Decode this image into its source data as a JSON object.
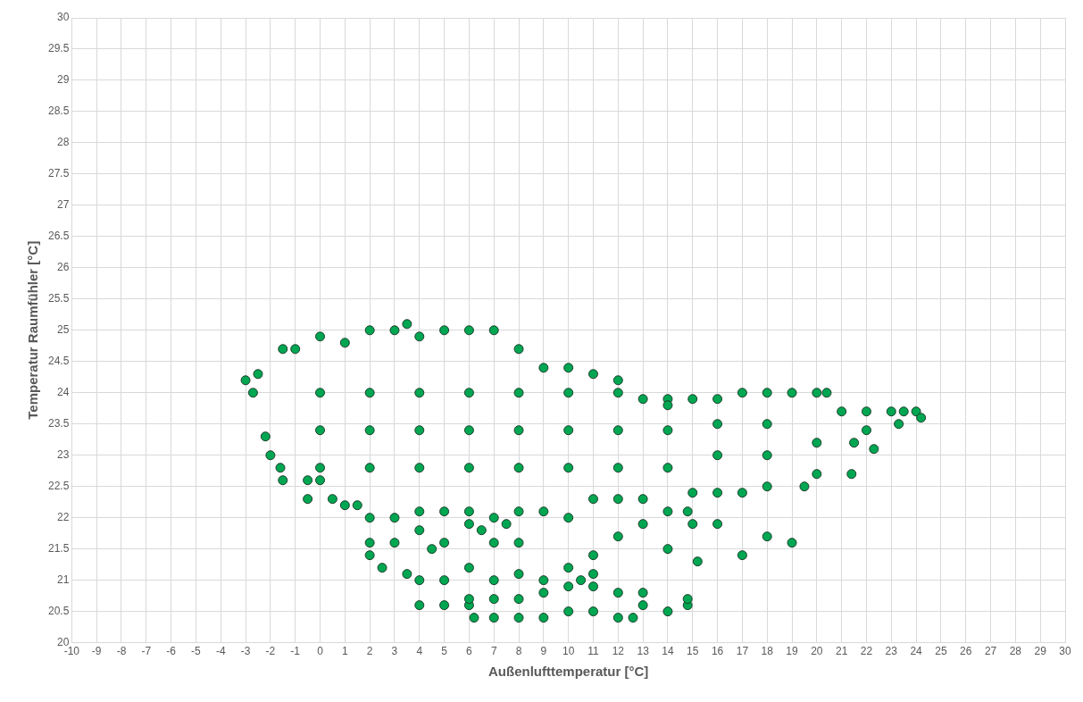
{
  "chart_data": {
    "type": "scatter",
    "xlabel": "Außenlufttemperatur [°C]",
    "ylabel": "Temperatur Raumfühler [°C]",
    "xlim": [
      -10,
      30
    ],
    "xticks": [
      -10,
      -9,
      -8,
      -7,
      -6,
      -5,
      -4,
      -3,
      -2,
      -1,
      0,
      1,
      2,
      3,
      4,
      5,
      6,
      7,
      8,
      9,
      10,
      11,
      12,
      13,
      14,
      15,
      16,
      17,
      18,
      19,
      20,
      21,
      22,
      23,
      24,
      25,
      26,
      27,
      28,
      29,
      30
    ],
    "ylim": [
      20,
      30
    ],
    "yticks": [
      20,
      20.5,
      21,
      21.5,
      22,
      22.5,
      23,
      23.5,
      24,
      24.5,
      25,
      25.5,
      26,
      26.5,
      27,
      27.5,
      28,
      28.5,
      29,
      29.5,
      30
    ],
    "grid": true,
    "legend": false,
    "marker": "circle",
    "series": [
      {
        "color": "#00a651",
        "x": [
          -3,
          -2.5,
          -1.5,
          -1,
          0,
          1,
          2,
          3,
          3.5,
          4,
          5,
          6,
          7,
          8,
          9,
          10,
          11,
          12,
          13,
          14,
          15,
          16,
          17,
          18,
          19,
          20,
          20.4,
          21,
          22,
          23,
          23.5,
          24,
          24.2,
          23.3,
          22.3,
          21.5,
          21.4,
          20,
          19.5,
          18,
          17,
          16,
          15,
          19,
          18,
          17,
          16,
          15,
          15.2,
          14,
          13,
          12,
          11,
          10,
          9,
          8,
          7,
          6,
          5,
          4,
          3.5,
          2.5,
          2,
          2,
          3,
          4,
          5,
          4.5,
          6,
          7,
          8,
          6.5,
          7.5,
          4,
          5,
          6,
          6.2,
          7,
          8,
          9,
          10,
          11,
          12,
          12.6,
          13,
          14,
          14.8,
          14.8,
          13,
          12,
          11,
          10,
          9,
          8,
          7,
          6,
          10.5,
          11,
          -2.7,
          -2.2,
          -2,
          -1.6,
          -1.5,
          -0.5,
          0,
          0.5,
          -0.5,
          1,
          1.5,
          2,
          3,
          4,
          5,
          6,
          7,
          8,
          9,
          10,
          11,
          12,
          13,
          14,
          14.8,
          0,
          0,
          0,
          2,
          2,
          2,
          4,
          4,
          4,
          6,
          6,
          6,
          8,
          8,
          8,
          10,
          10,
          10,
          12,
          12,
          12,
          14,
          14,
          14,
          16,
          16,
          18,
          18,
          20,
          22
        ],
        "values": [
          24.2,
          24.3,
          24.7,
          24.7,
          24.9,
          24.8,
          25.0,
          25.0,
          25.1,
          24.9,
          25.0,
          25.0,
          25.0,
          24.7,
          24.4,
          24.4,
          24.3,
          24.2,
          23.9,
          23.9,
          23.9,
          23.9,
          24.0,
          24.0,
          24.0,
          24.0,
          24.0,
          23.7,
          23.7,
          23.7,
          23.7,
          23.7,
          23.6,
          23.5,
          23.1,
          23.2,
          22.7,
          22.7,
          22.5,
          22.5,
          22.4,
          22.4,
          22.4,
          21.6,
          21.7,
          21.4,
          21.9,
          21.9,
          21.3,
          21.5,
          21.9,
          21.7,
          21.4,
          21.2,
          21.0,
          21.1,
          21.0,
          21.2,
          21.0,
          21.0,
          21.1,
          21.2,
          21.4,
          21.6,
          21.6,
          21.8,
          21.6,
          21.5,
          21.9,
          21.6,
          21.6,
          21.8,
          21.9,
          20.6,
          20.6,
          20.6,
          20.4,
          20.4,
          20.4,
          20.4,
          20.5,
          20.5,
          20.4,
          20.4,
          20.6,
          20.5,
          20.6,
          20.7,
          20.8,
          20.8,
          20.9,
          20.9,
          20.8,
          20.7,
          20.7,
          20.7,
          21.0,
          21.1,
          24.0,
          23.3,
          23.0,
          22.8,
          22.6,
          22.6,
          22.6,
          22.3,
          22.3,
          22.2,
          22.2,
          22.0,
          22.0,
          22.1,
          22.1,
          22.1,
          22.0,
          22.1,
          22.1,
          22.0,
          22.3,
          22.3,
          22.3,
          22.1,
          22.1,
          22.8,
          23.4,
          24.0,
          22.8,
          23.4,
          24.0,
          22.8,
          23.4,
          24.0,
          22.8,
          23.4,
          24.0,
          22.8,
          23.4,
          24.0,
          22.8,
          23.4,
          24.0,
          22.8,
          23.4,
          24.0,
          22.8,
          23.4,
          23.8,
          23.0,
          23.5,
          23.0,
          23.5,
          23.2,
          23.4
        ]
      }
    ]
  }
}
